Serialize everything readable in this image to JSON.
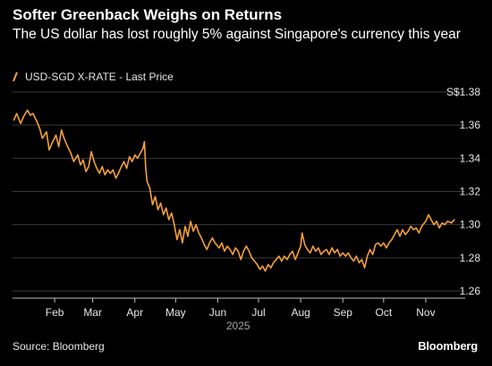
{
  "header": {
    "title": "Softer Greenback Weighs on Returns",
    "subtitle": "The US dollar has lost roughly 5% against Singapore's currency this year"
  },
  "footer": {
    "source": "Source: Bloomberg",
    "brand": "Bloomberg"
  },
  "colors": {
    "background": "#000000",
    "series": "#f5a03a",
    "grid": "#3a3a3a",
    "text": "#e6e6e6"
  },
  "chart_data": {
    "type": "line",
    "title": "Softer Greenback Weighs on Returns",
    "subtitle": "The US dollar has lost roughly 5% against Singapore's currency this year",
    "ylabel_unit": "S$",
    "ylim": [
      1.26,
      1.38
    ],
    "yticks": [
      1.26,
      1.28,
      1.3,
      1.32,
      1.34,
      1.36,
      1.38
    ],
    "ytick_labels": [
      "1.26",
      "1.28",
      "1.30",
      "1.32",
      "1.34",
      "1.36",
      "S$1.38"
    ],
    "xlim": [
      "2025-01-01",
      "2025-11-30"
    ],
    "xticks": [
      {
        "label": "Feb",
        "date": "2025-02-01"
      },
      {
        "label": "Mar",
        "date": "2025-03-01"
      },
      {
        "label": "Apr",
        "date": "2025-04-01"
      },
      {
        "label": "May",
        "date": "2025-05-01"
      },
      {
        "label": "Jun",
        "date": "2025-06-01"
      },
      {
        "label": "Jul",
        "date": "2025-07-01"
      },
      {
        "label": "Aug",
        "date": "2025-08-01"
      },
      {
        "label": "Sep",
        "date": "2025-09-01"
      },
      {
        "label": "Oct",
        "date": "2025-10-01"
      },
      {
        "label": "Nov",
        "date": "2025-11-01"
      }
    ],
    "xaxis_year": "2025",
    "grid": "horizontal",
    "legend": {
      "position": "top-left"
    },
    "series": [
      {
        "name": "USD-SGD X-RATE - Last Price",
        "points": [
          [
            "2025-01-02",
            1.363
          ],
          [
            "2025-01-04",
            1.367
          ],
          [
            "2025-01-07",
            1.361
          ],
          [
            "2025-01-09",
            1.365
          ],
          [
            "2025-01-12",
            1.369
          ],
          [
            "2025-01-14",
            1.366
          ],
          [
            "2025-01-16",
            1.367
          ],
          [
            "2025-01-19",
            1.362
          ],
          [
            "2025-01-21",
            1.358
          ],
          [
            "2025-01-23",
            1.352
          ],
          [
            "2025-01-26",
            1.356
          ],
          [
            "2025-01-28",
            1.345
          ],
          [
            "2025-01-30",
            1.349
          ],
          [
            "2025-02-02",
            1.354
          ],
          [
            "2025-02-04",
            1.347
          ],
          [
            "2025-02-06",
            1.357
          ],
          [
            "2025-02-08",
            1.352
          ],
          [
            "2025-02-10",
            1.348
          ],
          [
            "2025-02-13",
            1.343
          ],
          [
            "2025-02-15",
            1.338
          ],
          [
            "2025-02-18",
            1.342
          ],
          [
            "2025-02-20",
            1.336
          ],
          [
            "2025-02-22",
            1.339
          ],
          [
            "2025-02-24",
            1.332
          ],
          [
            "2025-02-26",
            1.335
          ],
          [
            "2025-02-28",
            1.344
          ],
          [
            "2025-03-02",
            1.338
          ],
          [
            "2025-03-04",
            1.334
          ],
          [
            "2025-03-06",
            1.331
          ],
          [
            "2025-03-08",
            1.335
          ],
          [
            "2025-03-10",
            1.33
          ],
          [
            "2025-03-12",
            1.333
          ],
          [
            "2025-03-14",
            1.331
          ],
          [
            "2025-03-16",
            1.333
          ],
          [
            "2025-03-18",
            1.328
          ],
          [
            "2025-03-20",
            1.331
          ],
          [
            "2025-03-22",
            1.335
          ],
          [
            "2025-03-24",
            1.338
          ],
          [
            "2025-03-26",
            1.334
          ],
          [
            "2025-03-28",
            1.341
          ],
          [
            "2025-03-30",
            1.338
          ],
          [
            "2025-04-01",
            1.342
          ],
          [
            "2025-04-03",
            1.34
          ],
          [
            "2025-04-05",
            1.343
          ],
          [
            "2025-04-07",
            1.346
          ],
          [
            "2025-04-08",
            1.35
          ],
          [
            "2025-04-09",
            1.334
          ],
          [
            "2025-04-10",
            1.326
          ],
          [
            "2025-04-12",
            1.322
          ],
          [
            "2025-04-14",
            1.312
          ],
          [
            "2025-04-16",
            1.317
          ],
          [
            "2025-04-18",
            1.309
          ],
          [
            "2025-04-20",
            1.313
          ],
          [
            "2025-04-22",
            1.306
          ],
          [
            "2025-04-24",
            1.31
          ],
          [
            "2025-04-26",
            1.303
          ],
          [
            "2025-04-28",
            1.307
          ],
          [
            "2025-04-30",
            1.3
          ],
          [
            "2025-05-02",
            1.291
          ],
          [
            "2025-05-04",
            1.297
          ],
          [
            "2025-05-06",
            1.289
          ],
          [
            "2025-05-08",
            1.299
          ],
          [
            "2025-05-10",
            1.293
          ],
          [
            "2025-05-12",
            1.302
          ],
          [
            "2025-05-14",
            1.296
          ],
          [
            "2025-05-16",
            1.3
          ],
          [
            "2025-05-18",
            1.295
          ],
          [
            "2025-05-20",
            1.292
          ],
          [
            "2025-05-22",
            1.288
          ],
          [
            "2025-05-24",
            1.285
          ],
          [
            "2025-05-26",
            1.289
          ],
          [
            "2025-05-28",
            1.292
          ],
          [
            "2025-05-30",
            1.289
          ],
          [
            "2025-06-02",
            1.286
          ],
          [
            "2025-06-04",
            1.289
          ],
          [
            "2025-06-06",
            1.284
          ],
          [
            "2025-06-08",
            1.287
          ],
          [
            "2025-06-10",
            1.285
          ],
          [
            "2025-06-12",
            1.282
          ],
          [
            "2025-06-14",
            1.286
          ],
          [
            "2025-06-16",
            1.284
          ],
          [
            "2025-06-18",
            1.279
          ],
          [
            "2025-06-20",
            1.284
          ],
          [
            "2025-06-22",
            1.287
          ],
          [
            "2025-06-24",
            1.284
          ],
          [
            "2025-06-26",
            1.28
          ],
          [
            "2025-06-28",
            1.278
          ],
          [
            "2025-06-30",
            1.276
          ],
          [
            "2025-07-02",
            1.273
          ],
          [
            "2025-07-04",
            1.275
          ],
          [
            "2025-07-06",
            1.272
          ],
          [
            "2025-07-08",
            1.276
          ],
          [
            "2025-07-10",
            1.274
          ],
          [
            "2025-07-12",
            1.277
          ],
          [
            "2025-07-14",
            1.279
          ],
          [
            "2025-07-16",
            1.281
          ],
          [
            "2025-07-18",
            1.278
          ],
          [
            "2025-07-20",
            1.281
          ],
          [
            "2025-07-22",
            1.279
          ],
          [
            "2025-07-24",
            1.282
          ],
          [
            "2025-07-26",
            1.284
          ],
          [
            "2025-07-28",
            1.279
          ],
          [
            "2025-07-30",
            1.283
          ],
          [
            "2025-08-01",
            1.287
          ],
          [
            "2025-08-02",
            1.295
          ],
          [
            "2025-08-04",
            1.288
          ],
          [
            "2025-08-06",
            1.285
          ],
          [
            "2025-08-08",
            1.283
          ],
          [
            "2025-08-10",
            1.287
          ],
          [
            "2025-08-12",
            1.284
          ],
          [
            "2025-08-14",
            1.286
          ],
          [
            "2025-08-16",
            1.282
          ],
          [
            "2025-08-18",
            1.284
          ],
          [
            "2025-08-20",
            1.285
          ],
          [
            "2025-08-22",
            1.282
          ],
          [
            "2025-08-24",
            1.286
          ],
          [
            "2025-08-26",
            1.283
          ],
          [
            "2025-08-28",
            1.285
          ],
          [
            "2025-08-30",
            1.281
          ],
          [
            "2025-09-01",
            1.283
          ],
          [
            "2025-09-03",
            1.281
          ],
          [
            "2025-09-05",
            1.283
          ],
          [
            "2025-09-07",
            1.28
          ],
          [
            "2025-09-09",
            1.278
          ],
          [
            "2025-09-11",
            1.281
          ],
          [
            "2025-09-13",
            1.277
          ],
          [
            "2025-09-15",
            1.279
          ],
          [
            "2025-09-17",
            1.274
          ],
          [
            "2025-09-19",
            1.281
          ],
          [
            "2025-09-21",
            1.285
          ],
          [
            "2025-09-23",
            1.282
          ],
          [
            "2025-09-25",
            1.288
          ],
          [
            "2025-09-27",
            1.289
          ],
          [
            "2025-09-29",
            1.287
          ],
          [
            "2025-10-01",
            1.289
          ],
          [
            "2025-10-03",
            1.286
          ],
          [
            "2025-10-05",
            1.289
          ],
          [
            "2025-10-07",
            1.291
          ],
          [
            "2025-10-09",
            1.294
          ],
          [
            "2025-10-11",
            1.297
          ],
          [
            "2025-10-13",
            1.293
          ],
          [
            "2025-10-15",
            1.297
          ],
          [
            "2025-10-17",
            1.294
          ],
          [
            "2025-10-19",
            1.296
          ],
          [
            "2025-10-21",
            1.299
          ],
          [
            "2025-10-23",
            1.297
          ],
          [
            "2025-10-25",
            1.298
          ],
          [
            "2025-10-27",
            1.295
          ],
          [
            "2025-10-29",
            1.299
          ],
          [
            "2025-11-01",
            1.302
          ],
          [
            "2025-11-03",
            1.306
          ],
          [
            "2025-11-05",
            1.303
          ],
          [
            "2025-11-07",
            1.3
          ],
          [
            "2025-11-09",
            1.302
          ],
          [
            "2025-11-11",
            1.298
          ],
          [
            "2025-11-13",
            1.301
          ],
          [
            "2025-11-15",
            1.3
          ],
          [
            "2025-11-17",
            1.302
          ],
          [
            "2025-11-20",
            1.301
          ],
          [
            "2025-11-22",
            1.303
          ]
        ]
      }
    ]
  }
}
